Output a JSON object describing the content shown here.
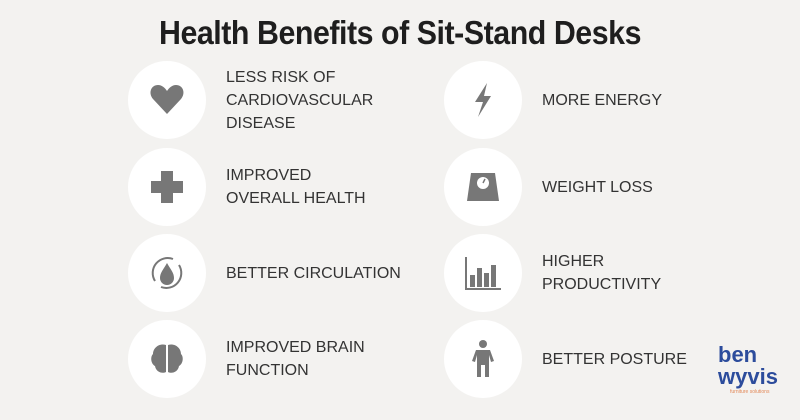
{
  "title": "Health Benefits of Sit-Stand Desks",
  "items": [
    {
      "label": "LESS RISK OF\nCARDIOVASCULAR\nDISEASE",
      "icon": "heart-icon"
    },
    {
      "label": "IMPROVED\nOVERALL HEALTH",
      "icon": "medical-cross-icon"
    },
    {
      "label": "BETTER CIRCULATION",
      "icon": "blood-drop-cycle-icon"
    },
    {
      "label": "IMPROVED BRAIN\nFUNCTION",
      "icon": "brain-icon"
    },
    {
      "label": "MORE ENERGY",
      "icon": "lightning-icon"
    },
    {
      "label": "WEIGHT LOSS",
      "icon": "scale-icon"
    },
    {
      "label": "HIGHER\nPRODUCTIVITY",
      "icon": "bar-chart-icon"
    },
    {
      "label": "BETTER POSTURE",
      "icon": "person-posture-icon"
    }
  ],
  "logo": {
    "line1": "ben",
    "line2": "wyvis",
    "tagline": "furniture solutions"
  },
  "colors": {
    "background": "#f3f2f0",
    "circle": "#ffffff",
    "icon": "#777777",
    "logo": "#2c4c9c",
    "tagline": "#e38a5a"
  }
}
